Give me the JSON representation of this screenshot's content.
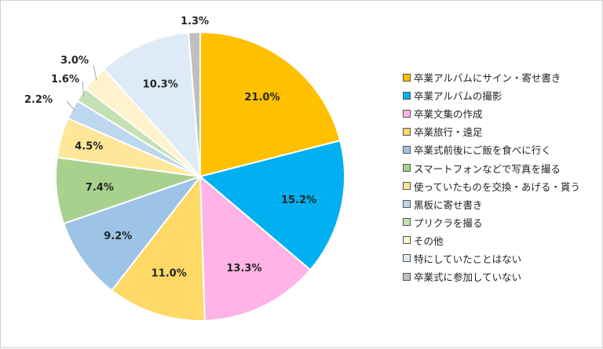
{
  "chart_data": {
    "type": "pie",
    "title": "",
    "start_angle_deg": 0,
    "direction": "clockwise",
    "legend_position": "right",
    "slices": [
      {
        "label": "卒業アルバムにサイン・寄せ書き",
        "value": 21.0,
        "value_label": "21.0%",
        "color": "#FFC000"
      },
      {
        "label": "卒業アルバムの撮影",
        "value": 15.2,
        "value_label": "15.2%",
        "color": "#00B0F0"
      },
      {
        "label": "卒業文集の作成",
        "value": 13.3,
        "value_label": "13.3%",
        "color": "#FFB3E6"
      },
      {
        "label": "卒業旅行・遠足",
        "value": 11.0,
        "value_label": "11.0%",
        "color": "#FFD966"
      },
      {
        "label": "卒業式前後にご飯を食べに行く",
        "value": 9.2,
        "value_label": "9.2%",
        "color": "#9DC3E6"
      },
      {
        "label": "スマートフォンなどで写真を撮る",
        "value": 7.4,
        "value_label": "7.4%",
        "color": "#A9D18E"
      },
      {
        "label": "使っていたものを交換・あげる・貰う",
        "value": 4.5,
        "value_label": "4.5%",
        "color": "#FFE699"
      },
      {
        "label": "黒板に寄せ書き",
        "value": 2.2,
        "value_label": "2.2%",
        "color": "#BDD7EE"
      },
      {
        "label": "プリクラを撮る",
        "value": 1.6,
        "value_label": "1.6%",
        "color": "#C5E0B4"
      },
      {
        "label": "その他",
        "value": 3.0,
        "value_label": "3.0%",
        "color": "#FFF2CC"
      },
      {
        "label": "特にしていたことはない",
        "value": 10.3,
        "value_label": "10.3%",
        "color": "#DEEBF7"
      },
      {
        "label": "卒業式に参加していない",
        "value": 1.3,
        "value_label": "1.3%",
        "color": "#BFBFBF"
      }
    ]
  }
}
